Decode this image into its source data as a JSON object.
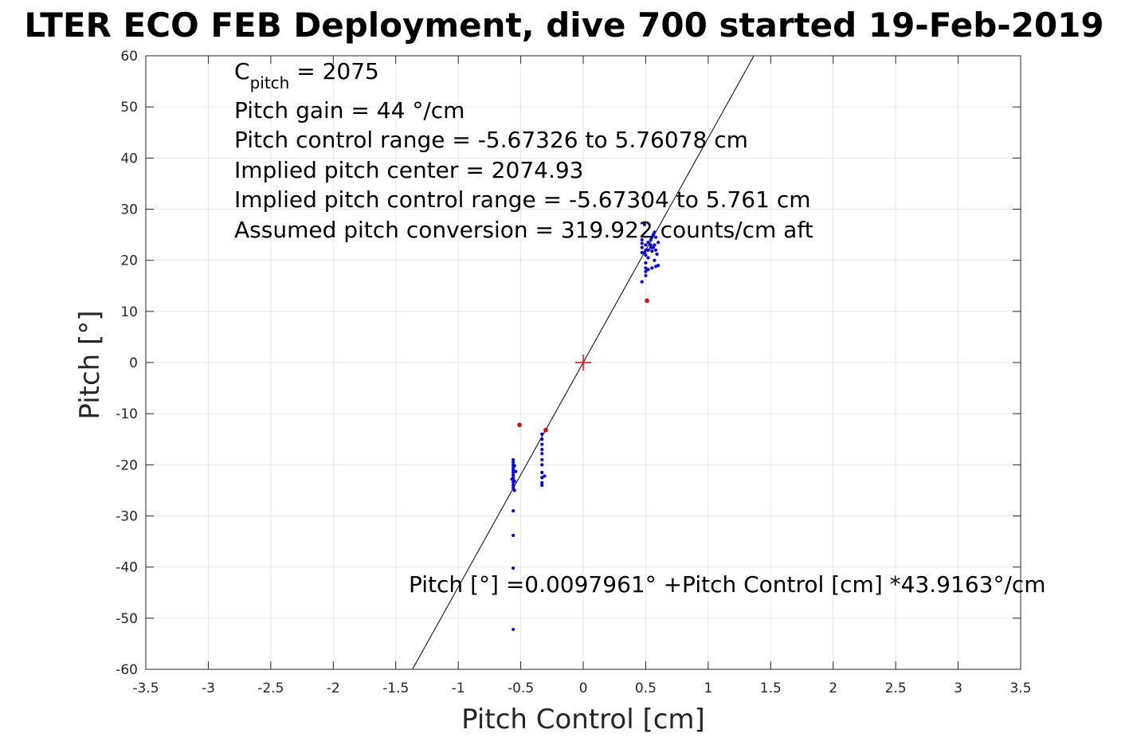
{
  "chart_data": {
    "type": "scatter",
    "title": "LTER ECO FEB Deployment, dive 700 started 19-Feb-2019",
    "xlabel": "Pitch Control [cm]",
    "ylabel": "Pitch [°]",
    "xlim": [
      -3.5,
      3.5
    ],
    "ylim": [
      -60,
      60
    ],
    "xticks": [
      -3.5,
      -3,
      -2.5,
      -2,
      -1.5,
      -1,
      -0.5,
      0,
      0.5,
      1,
      1.5,
      2,
      2.5,
      3,
      3.5
    ],
    "yticks": [
      -60,
      -50,
      -40,
      -30,
      -20,
      -10,
      0,
      10,
      20,
      30,
      40,
      50,
      60
    ],
    "xtick_labels": [
      "-3.5",
      "-3",
      "-2.5",
      "-2",
      "-1.5",
      "-1",
      "-0.5",
      "0",
      "0.5",
      "1",
      "1.5",
      "2",
      "2.5",
      "3",
      "3.5"
    ],
    "ytick_labels": [
      "-60",
      "-50",
      "-40",
      "-30",
      "-20",
      "-10",
      "0",
      "10",
      "20",
      "30",
      "40",
      "50",
      "60"
    ],
    "grid": true,
    "colors": {
      "included": "#0000ee",
      "excluded": "#ee0000",
      "fit_line": "#000000",
      "center_marker": "#ff0000",
      "grid": "#e6e6e6"
    },
    "fit": {
      "intercept": 0.0097961,
      "slope": 43.9163
    },
    "center_marker": {
      "x": 0,
      "y": 0
    },
    "annotations": {
      "c_pitch_label": "C",
      "c_pitch_sub": "pitch",
      "c_pitch_value": " = 2075",
      "lines": [
        "Pitch gain = 44 °/cm",
        "Pitch control range = -5.67326 to 5.76078 cm",
        "Implied pitch center = 2074.93",
        "Implied pitch control range = -5.67304 to 5.761 cm",
        "Assumed pitch conversion = 319.922 counts/cm aft"
      ],
      "equation": "Pitch [°] =0.0097961° +Pitch Control [cm] *43.9163°/cm"
    },
    "series": [
      {
        "role": "included",
        "points": [
          [
            -0.56,
            -19.0
          ],
          [
            -0.56,
            -19.5
          ],
          [
            -0.56,
            -20.0
          ],
          [
            -0.56,
            -20.5
          ],
          [
            -0.56,
            -21.0
          ],
          [
            -0.56,
            -21.5
          ],
          [
            -0.56,
            -22.0
          ],
          [
            -0.56,
            -22.5
          ],
          [
            -0.56,
            -23.0
          ],
          [
            -0.56,
            -23.5
          ],
          [
            -0.56,
            -24.0
          ],
          [
            -0.56,
            -24.5
          ],
          [
            -0.55,
            -20.2
          ],
          [
            -0.55,
            -23.2
          ],
          [
            -0.54,
            -21.3
          ],
          [
            -0.57,
            -22.8
          ],
          [
            -0.55,
            -25.0
          ],
          [
            -0.56,
            -29.0
          ],
          [
            -0.56,
            -33.8
          ],
          [
            -0.56,
            -40.2
          ],
          [
            -0.56,
            -52.2
          ],
          [
            -0.33,
            -14.0
          ],
          [
            -0.33,
            -15.0
          ],
          [
            -0.33,
            -16.0
          ],
          [
            -0.33,
            -17.0
          ],
          [
            -0.33,
            -17.8
          ],
          [
            -0.33,
            -19.0
          ],
          [
            -0.33,
            -20.0
          ],
          [
            -0.33,
            -21.5
          ],
          [
            -0.33,
            -22.5
          ],
          [
            -0.33,
            -23.5
          ],
          [
            -0.33,
            -24.0
          ],
          [
            -0.31,
            -22.2
          ],
          [
            0.47,
            15.8
          ],
          [
            0.47,
            21.5
          ],
          [
            0.47,
            22.5
          ],
          [
            0.47,
            23.3
          ],
          [
            0.47,
            24.0
          ],
          [
            0.48,
            32.2
          ],
          [
            0.49,
            21.5
          ],
          [
            0.49,
            27.0
          ],
          [
            0.5,
            17.0
          ],
          [
            0.5,
            17.8
          ],
          [
            0.5,
            18.5
          ],
          [
            0.5,
            19.5
          ],
          [
            0.5,
            21.0
          ],
          [
            0.5,
            22.0
          ],
          [
            0.5,
            23.0
          ],
          [
            0.52,
            18.2
          ],
          [
            0.52,
            20.5
          ],
          [
            0.52,
            22.0
          ],
          [
            0.52,
            23.5
          ],
          [
            0.54,
            22.5
          ],
          [
            0.54,
            23.0
          ],
          [
            0.54,
            24.0
          ],
          [
            0.55,
            18.5
          ],
          [
            0.55,
            21.8
          ],
          [
            0.55,
            24.5
          ],
          [
            0.56,
            22.5
          ],
          [
            0.56,
            25.0
          ],
          [
            0.57,
            20.0
          ],
          [
            0.57,
            23.0
          ],
          [
            0.57,
            25.5
          ],
          [
            0.58,
            18.8
          ],
          [
            0.58,
            22.0
          ],
          [
            0.58,
            24.5
          ],
          [
            0.59,
            21.2
          ],
          [
            0.6,
            19.0
          ],
          [
            0.6,
            23.5
          ]
        ]
      },
      {
        "role": "excluded",
        "points": [
          [
            -0.51,
            -12.2
          ],
          [
            -0.3,
            -13.2
          ],
          [
            0.51,
            12.1
          ]
        ]
      }
    ]
  }
}
